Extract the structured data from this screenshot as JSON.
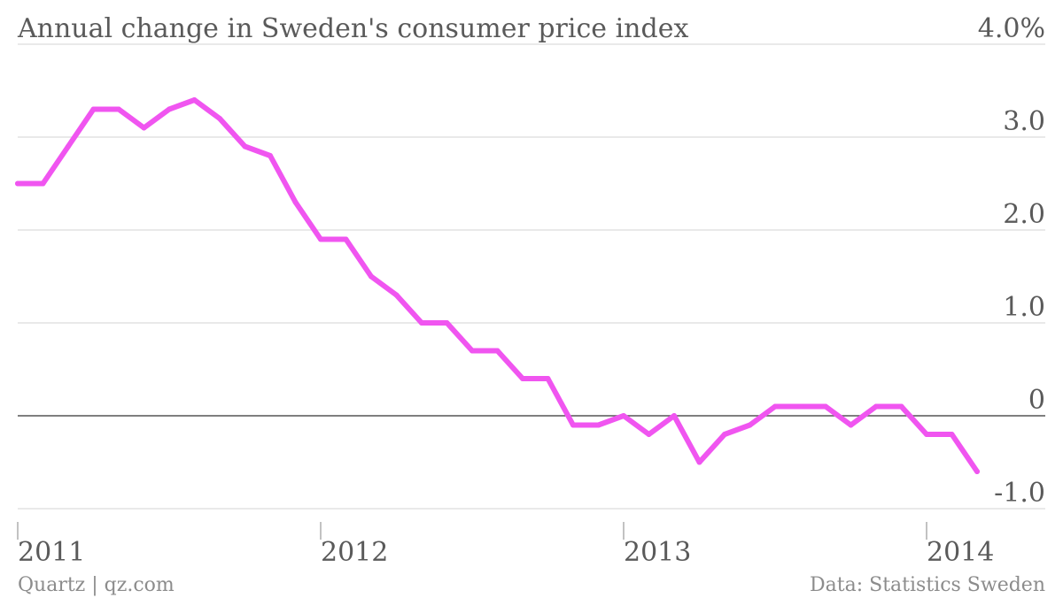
{
  "chart_data": {
    "type": "line",
    "title": "Annual change in Sweden's consumer price index",
    "xlabel": "",
    "ylabel": "",
    "ylim": [
      -1.0,
      4.0
    ],
    "yticks": [
      {
        "value": 4.0,
        "label": "4.0%"
      },
      {
        "value": 3.0,
        "label": "3.0"
      },
      {
        "value": 2.0,
        "label": "2.0"
      },
      {
        "value": 1.0,
        "label": "1.0"
      },
      {
        "value": 0.0,
        "label": "0"
      },
      {
        "value": -1.0,
        "label": "-1.0"
      }
    ],
    "xticks": [
      {
        "value": "2011-01",
        "label": "2011"
      },
      {
        "value": "2012-01",
        "label": "2012"
      },
      {
        "value": "2013-01",
        "label": "2013"
      },
      {
        "value": "2014-01",
        "label": "2014"
      }
    ],
    "xlim": [
      "2011-01",
      "2014-06"
    ],
    "grid": true,
    "legend": "none",
    "line_color": "#f055f0",
    "series": [
      {
        "x": [
          "2011-01",
          "2011-02",
          "2011-03",
          "2011-04",
          "2011-05",
          "2011-06",
          "2011-07",
          "2011-08",
          "2011-09",
          "2011-10",
          "2011-11",
          "2011-12",
          "2012-01",
          "2012-02",
          "2012-03",
          "2012-04",
          "2012-05",
          "2012-06",
          "2012-07",
          "2012-08",
          "2012-09",
          "2012-10",
          "2012-11",
          "2012-12",
          "2013-01",
          "2013-02",
          "2013-03",
          "2013-04",
          "2013-05",
          "2013-06",
          "2013-07",
          "2013-08",
          "2013-09",
          "2013-10",
          "2013-11",
          "2013-12",
          "2014-01",
          "2014-02",
          "2014-03"
        ],
        "values": [
          2.5,
          2.5,
          2.9,
          3.3,
          3.3,
          3.1,
          3.3,
          3.4,
          3.2,
          2.9,
          2.8,
          2.3,
          1.9,
          1.9,
          1.5,
          1.3,
          1.0,
          1.0,
          0.7,
          0.7,
          0.4,
          0.4,
          -0.1,
          -0.1,
          0.0,
          -0.2,
          0.0,
          -0.5,
          -0.2,
          -0.1,
          0.1,
          0.1,
          0.1,
          -0.1,
          0.1,
          0.1,
          -0.2,
          -0.2,
          -0.6
        ]
      }
    ]
  },
  "footer": {
    "source_left": "Quartz | qz.com",
    "source_right": "Data: Statistics Sweden"
  }
}
